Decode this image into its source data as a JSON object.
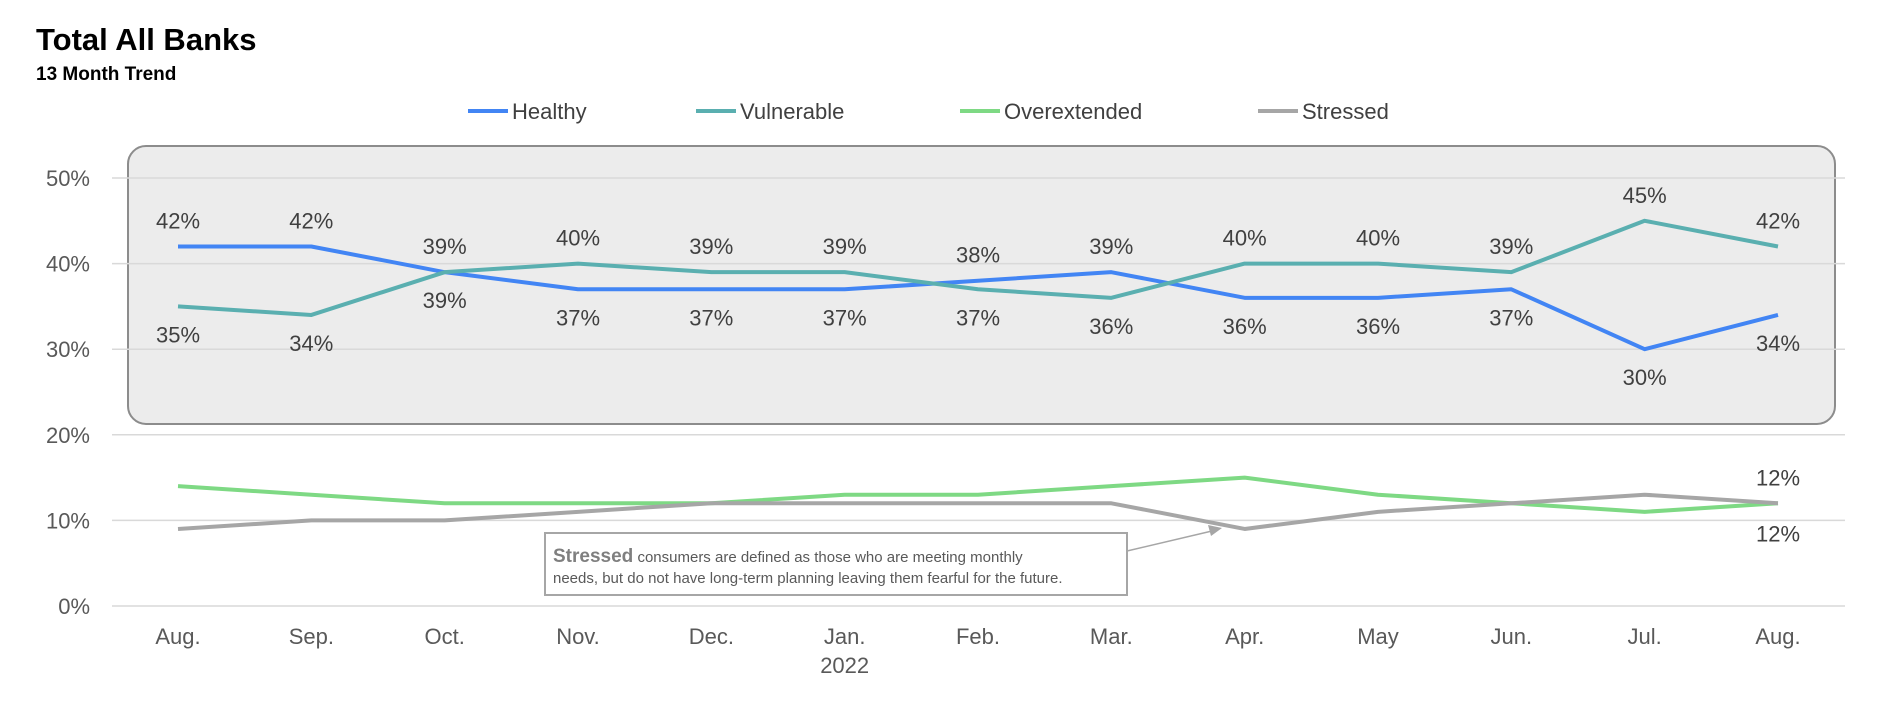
{
  "header": {
    "title": "Total All Banks",
    "subtitle": "13 Month Trend"
  },
  "annotation": {
    "bold": "Stressed",
    "line1": " consumers are defined as those who are meeting monthly",
    "line2": "needs, but do not have long-term planning leaving them fearful for the future."
  },
  "chart_data": {
    "type": "line",
    "title": "Total All Banks",
    "subtitle": "13 Month Trend",
    "categories": [
      "Aug.",
      "Sep.",
      "Oct.",
      "Nov.",
      "Dec.",
      "Jan.",
      "Feb.",
      "Mar.",
      "Apr.",
      "May",
      "Jun.",
      "Jul.",
      "Aug."
    ],
    "category_year_label": {
      "index": 5,
      "text": "2022"
    },
    "y_ticks": [
      "0%",
      "10%",
      "20%",
      "30%",
      "40%",
      "50%"
    ],
    "ylim": [
      0,
      50
    ],
    "grid": true,
    "legend_position": "top",
    "series": [
      {
        "name": "Healthy",
        "color": "#4285f4",
        "values": [
          42,
          42,
          39,
          37,
          37,
          37,
          38,
          39,
          36,
          36,
          37,
          30,
          34
        ],
        "labels": [
          "42%",
          "42%",
          "39%",
          "37%",
          "37%",
          "37%",
          "38%",
          "39%",
          "36%",
          "36%",
          "37%",
          "30%",
          "34%"
        ]
      },
      {
        "name": "Vulnerable",
        "color": "#5aafb0",
        "values": [
          35,
          34,
          39,
          40,
          39,
          39,
          37,
          36,
          40,
          40,
          39,
          45,
          42
        ],
        "labels": [
          "35%",
          "34%",
          "39%",
          "40%",
          "39%",
          "39%",
          "37%",
          "36%",
          "40%",
          "40%",
          "39%",
          "45%",
          "42%"
        ]
      },
      {
        "name": "Overextended",
        "color": "#7ed984",
        "values": [
          14,
          13,
          12,
          12,
          12,
          13,
          13,
          14,
          15,
          13,
          12,
          11,
          12
        ],
        "labels": [
          "",
          "",
          "",
          "",
          "",
          "",
          "",
          "",
          "",
          "",
          "",
          "",
          "12%"
        ]
      },
      {
        "name": "Stressed",
        "color": "#a6a6a6",
        "values": [
          9,
          10,
          10,
          11,
          12,
          12,
          12,
          12,
          9,
          11,
          12,
          13,
          12
        ],
        "labels": [
          "",
          "",
          "",
          "",
          "",
          "",
          "",
          "",
          "",
          "",
          "",
          "",
          "12%"
        ]
      }
    ]
  }
}
